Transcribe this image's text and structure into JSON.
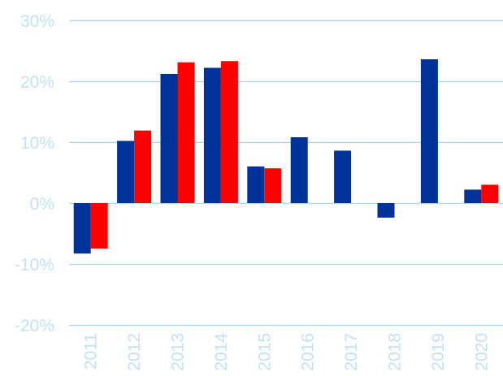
{
  "chart_data": {
    "type": "bar",
    "title": "",
    "xlabel": "",
    "ylabel": "",
    "categories": [
      "2011",
      "2012",
      "2013",
      "2014",
      "2015",
      "2016",
      "2017",
      "2018",
      "2019",
      "2020"
    ],
    "series": [
      {
        "color": "#003399",
        "values": [
          -8.3,
          10.2,
          21.2,
          22.2,
          6.0,
          10.8,
          8.6,
          -2.4,
          23.6,
          2.2
        ]
      },
      {
        "color": "#ff0000",
        "values": [
          -7.5,
          11.9,
          23.1,
          23.3,
          5.7,
          null,
          null,
          null,
          null,
          3.0
        ]
      }
    ],
    "ylim": [
      -20,
      30
    ],
    "yticks": [
      30,
      20,
      10,
      0,
      -10,
      -20
    ],
    "ytick_labels": [
      "30%",
      "20%",
      "10%",
      "0%",
      "-10%",
      "-20%"
    ],
    "grid": true,
    "legend": "none",
    "colors": {
      "gridline": "#a9d6ec",
      "tick_label": "#c2e2f2"
    }
  }
}
